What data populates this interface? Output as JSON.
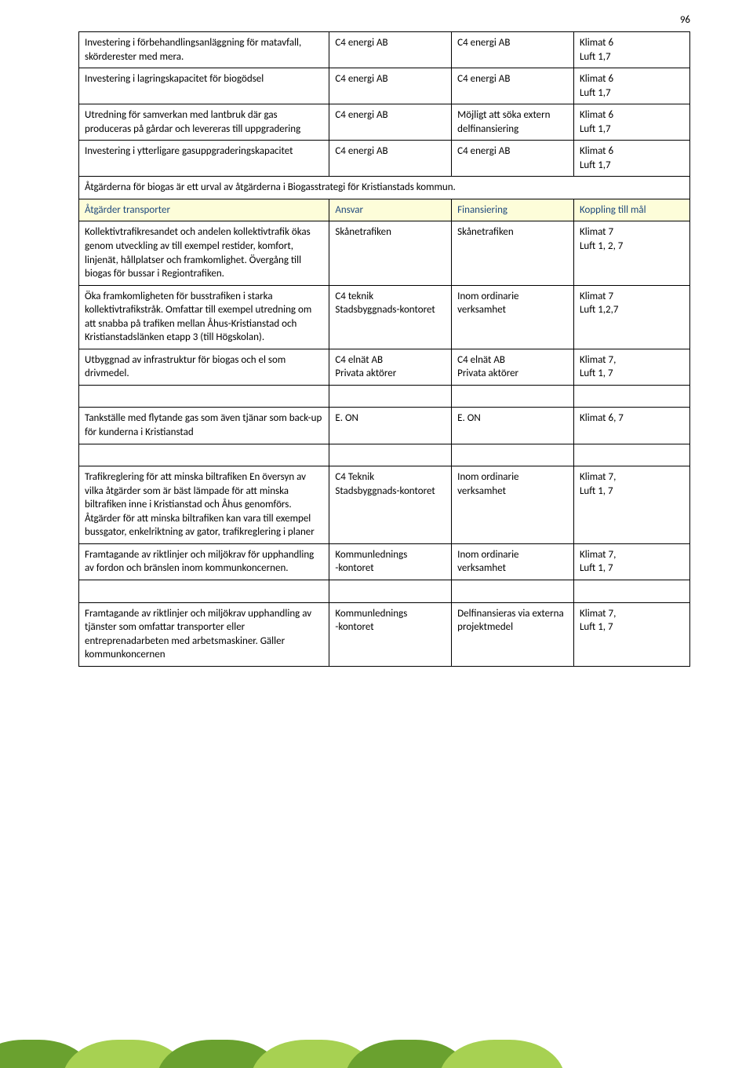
{
  "page_number": "96",
  "table": {
    "rows": [
      {
        "cells": [
          "Investering i förbehandlingsanläggning för matavfall, skörderester med mera.",
          "C4 energi AB",
          "C4 energi AB",
          "Klimat 6\nLuft 1,7"
        ]
      },
      {
        "cells": [
          "Investering i lagringskapacitet för biogödsel",
          "C4 energi AB",
          "C4 energi AB",
          "Klimat 6\nLuft 1,7"
        ]
      },
      {
        "cells": [
          "Utredning för samverkan med lantbruk där gas produceras på gårdar och levereras till uppgradering",
          "C4 energi AB",
          "Möjligt att söka extern delfinansiering",
          "Klimat 6\nLuft 1,7"
        ]
      },
      {
        "cells": [
          "Investering i ytterligare gasuppgraderingskapacitet",
          "C4 energi AB",
          "C4 energi AB",
          "Klimat 6\nLuft 1,7"
        ]
      },
      {
        "type": "merged",
        "text": "Åtgärderna för biogas är ett urval av åtgärderna i Biogasstrategi för Kristianstads kommun."
      },
      {
        "type": "header",
        "cells": [
          "Åtgärder transporter",
          "Ansvar",
          "Finansiering",
          "Koppling till mål"
        ]
      },
      {
        "cells": [
          "Kollektivtrafikresandet och andelen kollektivtrafik ökas genom utveckling av till exempel restider, komfort, linjenät, hållplatser och framkomlighet. Övergång till biogas för bussar i Regiontrafiken.",
          "Skånetrafiken",
          "Skånetrafiken",
          "Klimat 7\nLuft 1, 2, 7"
        ]
      },
      {
        "cells": [
          "Öka framkomligheten för busstrafiken i starka kollektivtrafikstråk. Omfattar till exempel utredning om att snabba på trafiken mellan Åhus-Kristianstad och Kristianstadslänken etapp 3 (till Högskolan).",
          "C4 teknik\nStadsbyggnads-kontoret",
          "Inom ordinarie verksamhet",
          "Klimat 7\nLuft 1,2,7"
        ]
      },
      {
        "cells": [
          "Utbyggnad av infrastruktur för biogas och el som drivmedel.",
          "C4 elnät AB\nPrivata aktörer",
          "C4 elnät AB\nPrivata aktörer",
          "Klimat 7,\nLuft 1, 7"
        ]
      },
      {
        "type": "gap"
      },
      {
        "cells": [
          "Tankställe med flytande gas som även tjänar som back-up för kunderna i Kristianstad",
          "E. ON",
          "E. ON",
          "Klimat 6, 7"
        ]
      },
      {
        "type": "gap"
      },
      {
        "cells": [
          "Trafikreglering för att minska biltrafiken En översyn av vilka åtgärder som är bäst lämpade för att minska biltrafiken inne i Kristianstad och Åhus genomförs. Åtgärder för att minska biltrafiken kan vara till exempel bussgator, enkelriktning av gator, trafikreglering i planer",
          "C4 Teknik\nStadsbyggnads-kontoret",
          "Inom ordinarie verksamhet",
          "Klimat 7,\nLuft 1, 7"
        ]
      },
      {
        "cells": [
          "Framtagande av riktlinjer och miljökrav för upphandling av fordon och bränslen inom kommunkoncernen.",
          "Kommunlednings\n-kontoret",
          "Inom ordinarie verksamhet",
          "Klimat 7,\nLuft 1, 7"
        ]
      },
      {
        "type": "gap"
      },
      {
        "cells": [
          "Framtagande av riktlinjer och miljökrav upphandling av tjänster som omfattar transporter eller entreprenadarbeten med arbetsmaskiner. Gäller kommunkoncernen",
          "Kommunlednings\n-kontoret",
          "Delfinansieras via externa projektmedel",
          "Klimat 7,\nLuft 1, 7"
        ]
      }
    ]
  },
  "style": {
    "header_bg": "#fdfdd9",
    "header_color": "#1f497d",
    "border_color": "#000000",
    "font_size": 13
  }
}
